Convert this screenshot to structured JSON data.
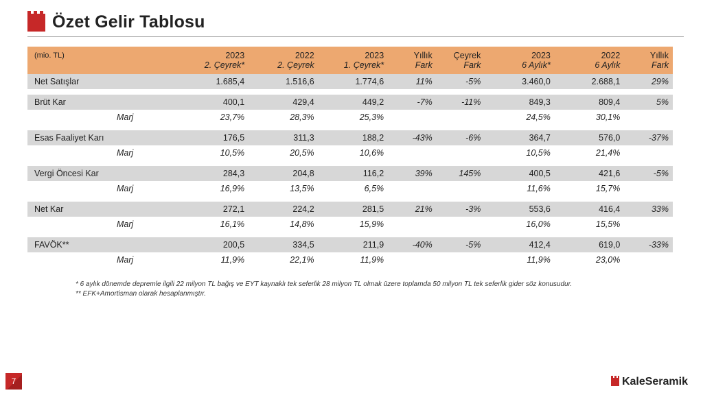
{
  "title": "Özet Gelir Tablosu",
  "unit_label": "(mio. TL)",
  "page_number": "7",
  "brand": "KaleSeramik",
  "colors": {
    "header_bg": "#eda870",
    "row_highlight": "#d7d7d7",
    "accent": "#c62828"
  },
  "columns_top": [
    "",
    "2023",
    "2022",
    "2023",
    "Yıllık",
    "Çeyrek",
    "2023",
    "2022",
    "Yıllık"
  ],
  "columns_bot": [
    "",
    "2. Çeyrek*",
    "2. Çeyrek",
    "1. Çeyrek*",
    "Fark",
    "Fark",
    "6 Aylık*",
    "6 Aylık",
    "Fark"
  ],
  "rows": [
    {
      "type": "data",
      "label": "Net Satışlar",
      "cells": [
        "1.685,4",
        "1.516,6",
        "1.774,6",
        "11%",
        "-5%",
        "3.460,0",
        "2.688,1",
        "29%"
      ]
    },
    {
      "type": "spacer"
    },
    {
      "type": "data",
      "label": "Brüt Kar",
      "cells": [
        "400,1",
        "429,4",
        "449,2",
        "-7%",
        "-11%",
        "849,3",
        "809,4",
        "5%"
      ]
    },
    {
      "type": "marj",
      "label": "Marj",
      "cells": [
        "23,7%",
        "28,3%",
        "25,3%",
        "",
        "",
        "24,5%",
        "30,1%",
        ""
      ]
    },
    {
      "type": "spacer"
    },
    {
      "type": "data",
      "label": "Esas Faaliyet Karı",
      "cells": [
        "176,5",
        "311,3",
        "188,2",
        "-43%",
        "-6%",
        "364,7",
        "576,0",
        "-37%"
      ]
    },
    {
      "type": "marj",
      "label": "Marj",
      "cells": [
        "10,5%",
        "20,5%",
        "10,6%",
        "",
        "",
        "10,5%",
        "21,4%",
        ""
      ]
    },
    {
      "type": "spacer"
    },
    {
      "type": "data",
      "label": "Vergi Öncesi Kar",
      "cells": [
        "284,3",
        "204,8",
        "116,2",
        "39%",
        "145%",
        "400,5",
        "421,6",
        "-5%"
      ]
    },
    {
      "type": "marj",
      "label": "Marj",
      "cells": [
        "16,9%",
        "13,5%",
        "6,5%",
        "",
        "",
        "11,6%",
        "15,7%",
        ""
      ]
    },
    {
      "type": "spacer"
    },
    {
      "type": "data",
      "label": "Net Kar",
      "cells": [
        "272,1",
        "224,2",
        "281,5",
        "21%",
        "-3%",
        "553,6",
        "416,4",
        "33%"
      ]
    },
    {
      "type": "marj",
      "label": "Marj",
      "cells": [
        "16,1%",
        "14,8%",
        "15,9%",
        "",
        "",
        "16,0%",
        "15,5%",
        ""
      ]
    },
    {
      "type": "spacer"
    },
    {
      "type": "data",
      "label": "FAVÖK**",
      "cells": [
        "200,5",
        "334,5",
        "211,9",
        "-40%",
        "-5%",
        "412,4",
        "619,0",
        "-33%"
      ]
    },
    {
      "type": "marj",
      "label": "Marj",
      "cells": [
        "11,9%",
        "22,1%",
        "11,9%",
        "",
        "",
        "11,9%",
        "23,0%",
        ""
      ]
    }
  ],
  "footnotes": [
    "*   6 aylık dönemde depremle ilgili 22 milyon TL bağış ve EYT kaynaklı tek seferlik 28 milyon TL olmak üzere toplamda 50 milyon TL tek seferlik gider söz konusudur.",
    "** EFK+Amortisman olarak hesaplanmıştır."
  ],
  "fark_col_indices": [
    3,
    4,
    7
  ]
}
